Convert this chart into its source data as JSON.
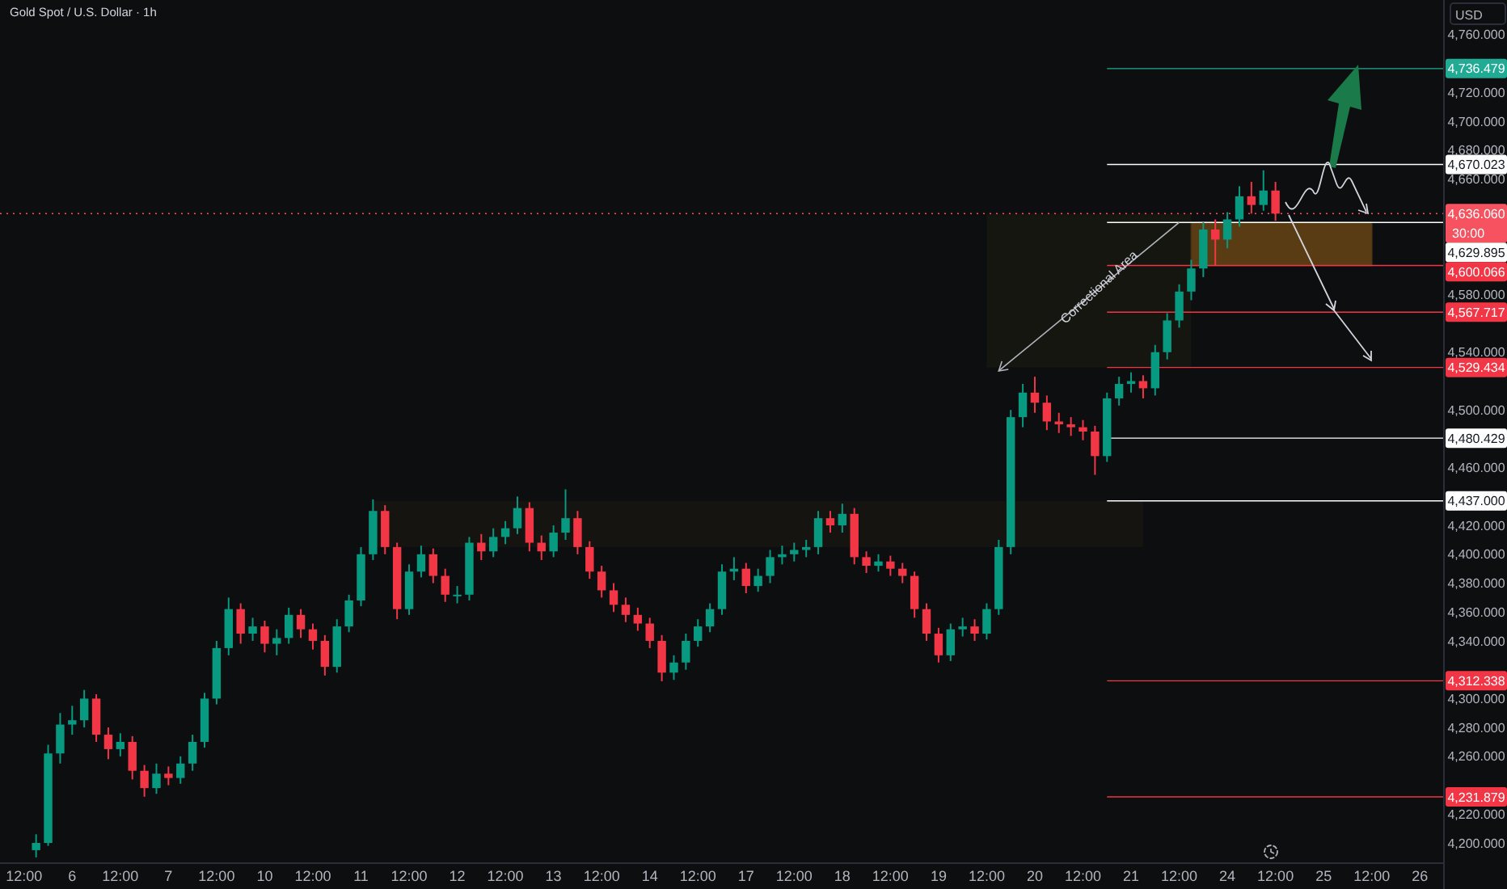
{
  "chart_data": {
    "type": "candlestick",
    "title": "Gold Spot / U.S. Dollar · 1h",
    "ylabel": "USD",
    "categories": [
      null,
      null,
      "12:00",
      null,
      null,
      null,
      "6",
      null,
      null,
      null,
      "12:00",
      null,
      null,
      null,
      "7",
      null,
      null,
      null,
      "12:00",
      null,
      null,
      null,
      "10",
      null,
      null,
      null,
      "12:00",
      null,
      null,
      null,
      "11",
      null,
      null,
      null,
      "12:00",
      null,
      null,
      null,
      "12",
      null,
      null,
      null,
      "12:00",
      null,
      null,
      null,
      "13",
      null,
      null,
      null,
      "12:00",
      null,
      null,
      null,
      "14",
      null,
      null,
      null,
      "12:00",
      null,
      null,
      null,
      "17",
      null,
      null,
      null,
      "12:00",
      null,
      null,
      null,
      "18",
      null,
      null,
      null,
      "12:00",
      null,
      null,
      null,
      "19",
      null,
      null,
      null,
      "12:00",
      null,
      null,
      null,
      "20",
      null,
      null,
      null,
      "12:00",
      null,
      null,
      null,
      "21",
      null,
      null,
      null,
      "12:00",
      null,
      null,
      null,
      "24",
      null,
      null,
      null,
      "12:00",
      null,
      null,
      null,
      "25",
      null,
      null,
      null,
      "12:00",
      null,
      null,
      null,
      "26",
      null
    ],
    "ohlc": [
      null,
      null,
      null,
      [
        4195,
        4206,
        4190,
        4200
      ],
      [
        4200,
        4268,
        4198,
        4262
      ],
      [
        4262,
        4290,
        4255,
        4282
      ],
      [
        4282,
        4295,
        4275,
        4285
      ],
      [
        4285,
        4306,
        4280,
        4300
      ],
      [
        4300,
        4303,
        4270,
        4275
      ],
      [
        4275,
        4280,
        4258,
        4265
      ],
      [
        4265,
        4276,
        4260,
        4270
      ],
      [
        4270,
        4274,
        4244,
        4250
      ],
      [
        4250,
        4254,
        4232,
        4238
      ],
      [
        4238,
        4255,
        4234,
        4248
      ],
      [
        4248,
        4253,
        4240,
        4245
      ],
      [
        4245,
        4260,
        4241,
        4255
      ],
      [
        4255,
        4275,
        4250,
        4270
      ],
      [
        4270,
        4304,
        4266,
        4300
      ],
      [
        4300,
        4340,
        4296,
        4335
      ],
      [
        4335,
        4370,
        4330,
        4362
      ],
      [
        4362,
        4366,
        4338,
        4345
      ],
      [
        4345,
        4356,
        4340,
        4350
      ],
      [
        4350,
        4354,
        4332,
        4338
      ],
      [
        4338,
        4348,
        4330,
        4342
      ],
      [
        4342,
        4363,
        4338,
        4358
      ],
      [
        4358,
        4362,
        4342,
        4348
      ],
      [
        4348,
        4352,
        4334,
        4340
      ],
      [
        4340,
        4344,
        4316,
        4322
      ],
      [
        4322,
        4355,
        4318,
        4350
      ],
      [
        4350,
        4372,
        4346,
        4368
      ],
      [
        4368,
        4405,
        4364,
        4400
      ],
      [
        4400,
        4438,
        4396,
        4430
      ],
      [
        4430,
        4434,
        4400,
        4405
      ],
      [
        4405,
        4408,
        4355,
        4362
      ],
      [
        4362,
        4393,
        4358,
        4388
      ],
      [
        4388,
        4406,
        4384,
        4400
      ],
      [
        4400,
        4404,
        4380,
        4385
      ],
      [
        4385,
        4390,
        4367,
        4372
      ],
      [
        4372,
        4378,
        4366,
        4372
      ],
      [
        4372,
        4412,
        4368,
        4408
      ],
      [
        4408,
        4414,
        4396,
        4402
      ],
      [
        4402,
        4418,
        4398,
        4412
      ],
      [
        4412,
        4423,
        4407,
        4418
      ],
      [
        4418,
        4440,
        4414,
        4432
      ],
      [
        4432,
        4436,
        4402,
        4408
      ],
      [
        4408,
        4413,
        4396,
        4402
      ],
      [
        4402,
        4420,
        4398,
        4415
      ],
      [
        4415,
        4445,
        4410,
        4425
      ],
      [
        4425,
        4430,
        4400,
        4405
      ],
      [
        4405,
        4409,
        4383,
        4388
      ],
      [
        4388,
        4392,
        4370,
        4375
      ],
      [
        4375,
        4380,
        4360,
        4365
      ],
      [
        4365,
        4370,
        4353,
        4358
      ],
      [
        4358,
        4363,
        4347,
        4352
      ],
      [
        4352,
        4356,
        4335,
        4340
      ],
      [
        4340,
        4344,
        4312,
        4318
      ],
      [
        4318,
        4330,
        4313,
        4325
      ],
      [
        4325,
        4345,
        4320,
        4340
      ],
      [
        4340,
        4355,
        4336,
        4350
      ],
      [
        4350,
        4366,
        4346,
        4362
      ],
      [
        4362,
        4393,
        4358,
        4388
      ],
      [
        4388,
        4398,
        4382,
        4390
      ],
      [
        4390,
        4394,
        4373,
        4378
      ],
      [
        4378,
        4390,
        4374,
        4385
      ],
      [
        4385,
        4403,
        4380,
        4398
      ],
      [
        4398,
        4406,
        4393,
        4400
      ],
      [
        4400,
        4408,
        4395,
        4403
      ],
      [
        4403,
        4410,
        4398,
        4405
      ],
      [
        4405,
        4430,
        4400,
        4425
      ],
      [
        4425,
        4430,
        4415,
        4420
      ],
      [
        4420,
        4435,
        4415,
        4428
      ],
      [
        4428,
        4432,
        4393,
        4398
      ],
      [
        4398,
        4402,
        4387,
        4392
      ],
      [
        4392,
        4400,
        4388,
        4395
      ],
      [
        4395,
        4399,
        4385,
        4390
      ],
      [
        4390,
        4394,
        4380,
        4385
      ],
      [
        4385,
        4388,
        4356,
        4362
      ],
      [
        4362,
        4366,
        4340,
        4345
      ],
      [
        4345,
        4349,
        4325,
        4330
      ],
      [
        4330,
        4352,
        4326,
        4348
      ],
      [
        4348,
        4356,
        4343,
        4350
      ],
      [
        4350,
        4355,
        4340,
        4345
      ],
      [
        4345,
        4366,
        4341,
        4362
      ],
      [
        4362,
        4410,
        4358,
        4405
      ],
      [
        4405,
        4500,
        4400,
        4495
      ],
      [
        4495,
        4518,
        4488,
        4512
      ],
      [
        4512,
        4523,
        4498,
        4505
      ],
      [
        4505,
        4510,
        4486,
        4492
      ],
      [
        4492,
        4498,
        4484,
        4490
      ],
      [
        4490,
        4495,
        4482,
        4488
      ],
      [
        4488,
        4493,
        4479,
        4485
      ],
      [
        4485,
        4489,
        4455,
        4468
      ],
      [
        4468,
        4512,
        4464,
        4508
      ],
      [
        4508,
        4523,
        4503,
        4518
      ],
      [
        4518,
        4526,
        4512,
        4520
      ],
      [
        4520,
        4524,
        4508,
        4515
      ],
      [
        4515,
        4545,
        4510,
        4540
      ],
      [
        4540,
        4567,
        4535,
        4562
      ],
      [
        4562,
        4587,
        4557,
        4582
      ],
      [
        4582,
        4604,
        4576,
        4598
      ],
      [
        4598,
        4630,
        4592,
        4625
      ],
      [
        4625,
        4632,
        4600,
        4618
      ],
      [
        4618,
        4637,
        4612,
        4632
      ],
      [
        4632,
        4655,
        4627,
        4648
      ],
      [
        4648,
        4658,
        4636,
        4642
      ],
      [
        4642,
        4666,
        4638,
        4652
      ],
      [
        4652,
        4658,
        4631,
        4636
      ],
      null,
      null,
      null,
      null,
      null,
      null,
      null,
      null,
      null,
      null,
      null,
      null,
      null
    ],
    "colors": [
      null,
      null,
      null,
      "#089981",
      "#089981",
      "#089981",
      "#089981",
      "#089981",
      "#f23645",
      "#f23645",
      "#089981",
      "#f23645",
      "#f23645",
      "#089981",
      "#f23645",
      "#089981",
      "#089981",
      "#089981",
      "#089981",
      "#089981",
      "#f23645",
      "#089981",
      "#f23645",
      "#089981",
      "#089981",
      "#f23645",
      "#f23645",
      "#f23645",
      "#089981",
      "#089981",
      "#089981",
      "#089981",
      "#f23645",
      "#f23645",
      "#089981",
      "#089981",
      "#f23645",
      "#f23645",
      "#089981",
      "#089981",
      "#f23645",
      "#089981",
      "#089981",
      "#089981",
      "#f23645",
      "#f23645",
      "#089981",
      "#089981",
      "#f23645",
      "#f23645",
      "#f23645",
      "#f23645",
      "#f23645",
      "#f23645",
      "#f23645",
      "#f23645",
      "#089981",
      "#089981",
      "#089981",
      "#089981",
      "#089981",
      "#089981",
      "#f23645",
      "#089981",
      "#089981",
      "#089981",
      "#089981",
      "#089981",
      "#089981",
      "#f23645",
      "#089981",
      "#f23645",
      "#f23645",
      "#089981",
      "#f23645",
      "#f23645",
      "#f23645",
      "#f23645",
      "#f23645",
      "#089981",
      "#089981",
      "#f23645",
      "#089981",
      "#089981",
      "#089981",
      "#089981",
      "#f23645",
      "#f23645",
      "#f23645",
      "#f23645",
      "#f23645",
      "#f23645",
      "#089981",
      "#089981",
      "#089981",
      "#f23645",
      "#089981",
      "#089981",
      "#089981",
      "#089981",
      "#089981",
      "#f23645",
      "#089981",
      "#089981",
      "#f23645",
      "#089981",
      "#f23645",
      null,
      null,
      null,
      null,
      null,
      null,
      null,
      null,
      null,
      null,
      null,
      null,
      null
    ],
    "ylim": [
      4186,
      4784
    ],
    "yticks": [
      {
        "value": 4200,
        "label": "4,200.000"
      },
      {
        "value": 4220,
        "label": "4,220.000"
      },
      {
        "value": 4260,
        "label": "4,260.000"
      },
      {
        "value": 4280,
        "label": "4,280.000"
      },
      {
        "value": 4300,
        "label": "4,300.000"
      },
      {
        "value": 4340,
        "label": "4,340.000"
      },
      {
        "value": 4360,
        "label": "4,360.000"
      },
      {
        "value": 4380,
        "label": "4,380.000"
      },
      {
        "value": 4400,
        "label": "4,400.000"
      },
      {
        "value": 4420,
        "label": "4,420.000"
      },
      {
        "value": 4460,
        "label": "4,460.000"
      },
      {
        "value": 4500,
        "label": "4,500.000"
      },
      {
        "value": 4540,
        "label": "4,540.000"
      },
      {
        "value": 4580,
        "label": "4,580.000"
      },
      {
        "value": 4660,
        "label": "4,660.000"
      },
      {
        "value": 4680,
        "label": "4,680.000"
      },
      {
        "value": 4700,
        "label": "4,700.000"
      },
      {
        "value": 4720,
        "label": "4,720.000"
      },
      {
        "value": 4760,
        "label": "4,760.000"
      }
    ],
    "ref_lines": [
      {
        "axis": "y",
        "value": 4736.479,
        "label": "4,736.479",
        "color": "#22ab94"
      },
      {
        "axis": "y",
        "value": 4670.023,
        "label": "4,670.023",
        "color": "#ffffff"
      },
      {
        "axis": "y",
        "value": 4636.06,
        "label": "4,636.060",
        "color": "#f7525f",
        "line_style": "dashed"
      },
      {
        "axis": "y",
        "value": 4629.895,
        "label": "4,629.895",
        "color": "#ffffff"
      },
      {
        "axis": "y",
        "value": 4600.066,
        "label": "4,600.066",
        "color": "#f23645"
      },
      {
        "axis": "y",
        "value": 4567.717,
        "label": "4,567.717",
        "color": "#f23645"
      },
      {
        "axis": "y",
        "value": 4529.434,
        "label": "4,529.434",
        "color": "#f23645"
      },
      {
        "axis": "y",
        "value": 4480.429,
        "label": "4,480.429",
        "color": "#ffffff"
      },
      {
        "axis": "y",
        "value": 4437,
        "label": "4,437.000",
        "color": "#ffffff"
      },
      {
        "axis": "y",
        "value": 4312.338,
        "label": "4,312.338",
        "color": "#f23645"
      },
      {
        "axis": "y",
        "value": 4231.879,
        "label": "4,231.879",
        "color": "#f23645"
      }
    ],
    "annotations": [
      "Correctional Area",
      "30:00"
    ],
    "grid": false
  }
}
